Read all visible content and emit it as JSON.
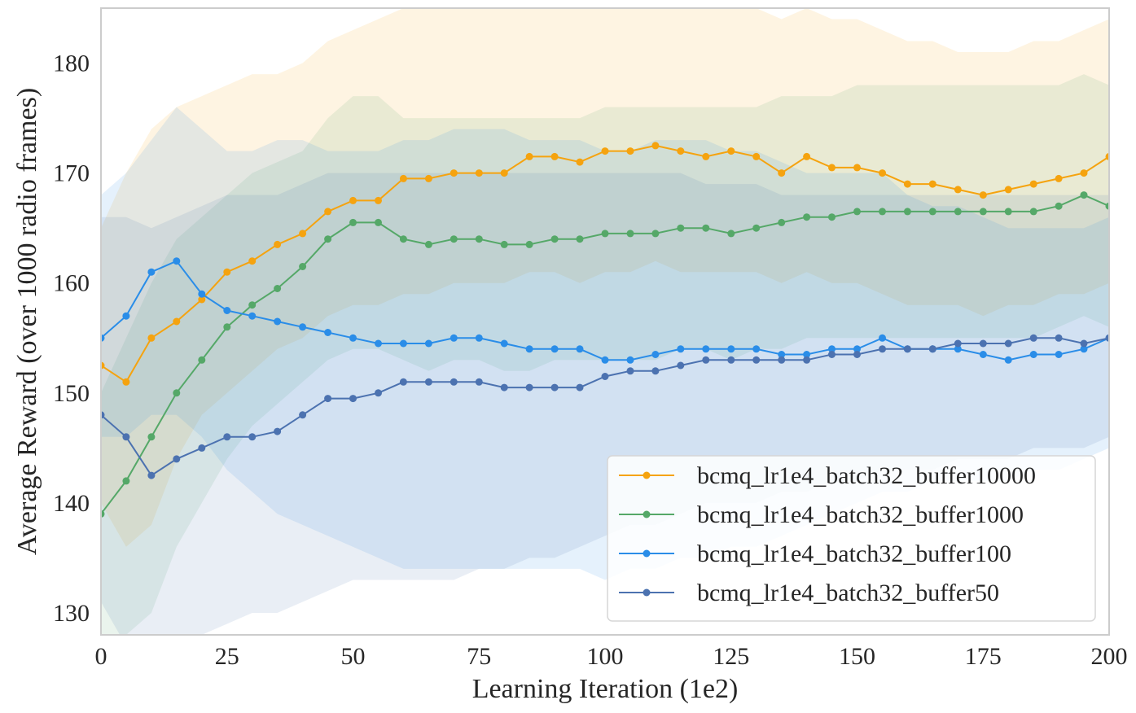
{
  "chart_data": {
    "type": "line",
    "title": "",
    "xlabel": "Learning Iteration (1e2)",
    "ylabel": "Average Reward (over 1000 radio frames)",
    "xlim": [
      0,
      200
    ],
    "ylim": [
      128,
      185
    ],
    "x_ticks": [
      "0",
      "25",
      "50",
      "75",
      "100",
      "125",
      "150",
      "175",
      "200"
    ],
    "y_ticks": [
      "130",
      "140",
      "150",
      "160",
      "170",
      "180"
    ],
    "grid": false,
    "legend_position": "lower-right",
    "marker": "circle",
    "shaded_band": true,
    "x": [
      0,
      5,
      10,
      15,
      20,
      25,
      30,
      35,
      40,
      45,
      50,
      55,
      60,
      65,
      70,
      75,
      80,
      85,
      90,
      95,
      100,
      105,
      110,
      115,
      120,
      125,
      130,
      135,
      140,
      145,
      150,
      155,
      160,
      165,
      170,
      175,
      180,
      185,
      190,
      195,
      200
    ],
    "series": [
      {
        "name": "bcmq_lr1e4_batch32_buffer10000",
        "color": "#f5a30f",
        "values": [
          152.5,
          151,
          155,
          156.5,
          158.5,
          161,
          162,
          163.5,
          164.5,
          166.5,
          167.5,
          167.5,
          169.5,
          169.5,
          170,
          170,
          170,
          171.5,
          171.5,
          171,
          172,
          172,
          172.5,
          172,
          171.5,
          172,
          171.5,
          170,
          171.5,
          170.5,
          170.5,
          170,
          169,
          169,
          168.5,
          168,
          168.5,
          169,
          169.5,
          170,
          171.5
        ],
        "band": [
          [
            140,
            165
          ],
          [
            136,
            170
          ],
          [
            138,
            174
          ],
          [
            144,
            176
          ],
          [
            148,
            177
          ],
          [
            150,
            178
          ],
          [
            152,
            179
          ],
          [
            154,
            179
          ],
          [
            155,
            180
          ],
          [
            157,
            182
          ],
          [
            158,
            183
          ],
          [
            158,
            184
          ],
          [
            159,
            185
          ],
          [
            159,
            185
          ],
          [
            160,
            185
          ],
          [
            160,
            185
          ],
          [
            160,
            185
          ],
          [
            161,
            185
          ],
          [
            161,
            185
          ],
          [
            160,
            185
          ],
          [
            161,
            185
          ],
          [
            161,
            185
          ],
          [
            162,
            185
          ],
          [
            161,
            185
          ],
          [
            161,
            185
          ],
          [
            161,
            185
          ],
          [
            161,
            185
          ],
          [
            160,
            184
          ],
          [
            161,
            185
          ],
          [
            160,
            184
          ],
          [
            160,
            184
          ],
          [
            159,
            183
          ],
          [
            158,
            182
          ],
          [
            158,
            182
          ],
          [
            158,
            181
          ],
          [
            157,
            181
          ],
          [
            158,
            181
          ],
          [
            158,
            182
          ],
          [
            159,
            182
          ],
          [
            159,
            183
          ],
          [
            160,
            184
          ]
        ]
      },
      {
        "name": "bcmq_lr1e4_batch32_buffer1000",
        "color": "#55a868",
        "values": [
          139,
          142,
          146,
          150,
          153,
          156,
          158,
          159.5,
          161.5,
          164,
          165.5,
          165.5,
          164,
          163.5,
          164,
          164,
          163.5,
          163.5,
          164,
          164,
          164.5,
          164.5,
          164.5,
          165,
          165,
          164.5,
          165,
          165.5,
          166,
          166,
          166.5,
          166.5,
          166.5,
          166.5,
          166.5,
          166.5,
          166.5,
          166.5,
          167,
          168,
          167
        ],
        "band": [
          [
            128,
            150
          ],
          [
            128,
            155
          ],
          [
            130,
            160
          ],
          [
            136,
            164
          ],
          [
            140,
            166
          ],
          [
            144,
            168
          ],
          [
            147,
            170
          ],
          [
            149,
            171
          ],
          [
            151,
            172
          ],
          [
            153,
            175
          ],
          [
            154,
            177
          ],
          [
            154,
            177
          ],
          [
            153,
            175
          ],
          [
            152,
            175
          ],
          [
            153,
            175
          ],
          [
            153,
            175
          ],
          [
            152,
            175
          ],
          [
            152,
            175
          ],
          [
            153,
            175
          ],
          [
            153,
            175
          ],
          [
            153,
            176
          ],
          [
            153,
            176
          ],
          [
            153,
            176
          ],
          [
            154,
            176
          ],
          [
            154,
            176
          ],
          [
            153,
            176
          ],
          [
            154,
            176
          ],
          [
            154,
            177
          ],
          [
            155,
            177
          ],
          [
            155,
            177
          ],
          [
            155,
            178
          ],
          [
            155,
            178
          ],
          [
            155,
            178
          ],
          [
            155,
            178
          ],
          [
            155,
            178
          ],
          [
            155,
            178
          ],
          [
            155,
            178
          ],
          [
            155,
            178
          ],
          [
            156,
            178
          ],
          [
            157,
            179
          ],
          [
            156,
            178
          ]
        ]
      },
      {
        "name": "bcmq_lr1e4_batch32_buffer100",
        "color": "#2a8de8",
        "values": [
          155,
          157,
          161,
          162,
          159,
          157.5,
          157,
          156.5,
          156,
          155.5,
          155,
          154.5,
          154.5,
          154.5,
          155,
          155,
          154.5,
          154,
          154,
          154,
          153,
          153,
          153.5,
          154,
          154,
          154,
          154,
          153.5,
          153.5,
          154,
          154,
          155,
          154,
          154,
          154,
          153.5,
          153,
          153.5,
          153.5,
          154,
          155
        ],
        "band": [
          [
            146,
            168
          ],
          [
            146,
            170
          ],
          [
            148,
            173
          ],
          [
            148,
            176
          ],
          [
            146,
            174
          ],
          [
            143,
            172
          ],
          [
            141,
            172
          ],
          [
            139,
            173
          ],
          [
            138,
            173
          ],
          [
            137,
            172
          ],
          [
            136,
            172
          ],
          [
            135,
            172
          ],
          [
            134,
            173
          ],
          [
            134,
            173
          ],
          [
            134,
            174
          ],
          [
            134,
            174
          ],
          [
            134,
            174
          ],
          [
            134,
            173
          ],
          [
            134,
            173
          ],
          [
            134,
            173
          ],
          [
            133,
            172
          ],
          [
            134,
            172
          ],
          [
            134,
            173
          ],
          [
            135,
            173
          ],
          [
            135,
            173
          ],
          [
            136,
            172
          ],
          [
            136,
            172
          ],
          [
            137,
            171
          ],
          [
            138,
            170
          ],
          [
            139,
            170
          ],
          [
            140,
            170
          ],
          [
            141,
            170
          ],
          [
            141,
            168
          ],
          [
            142,
            167
          ],
          [
            142,
            167
          ],
          [
            142,
            166
          ],
          [
            142,
            165
          ],
          [
            143,
            165
          ],
          [
            143,
            165
          ],
          [
            144,
            165
          ],
          [
            145,
            166
          ]
        ]
      },
      {
        "name": "bcmq_lr1e4_batch32_buffer50",
        "color": "#4c72b0",
        "values": [
          148,
          146,
          142.5,
          144,
          145,
          146,
          146,
          146.5,
          148,
          149.5,
          149.5,
          150,
          151,
          151,
          151,
          151,
          150.5,
          150.5,
          150.5,
          150.5,
          151.5,
          152,
          152,
          152.5,
          153,
          153,
          153,
          153,
          153,
          153.5,
          153.5,
          154,
          154,
          154,
          154.5,
          154.5,
          154.5,
          155,
          155,
          154.5,
          155
        ],
        "band": [
          [
            131,
            166
          ],
          [
            127,
            166
          ],
          [
            126,
            165
          ],
          [
            127,
            166
          ],
          [
            128,
            167
          ],
          [
            129,
            168
          ],
          [
            130,
            168
          ],
          [
            130,
            168
          ],
          [
            131,
            169
          ],
          [
            132,
            170
          ],
          [
            133,
            170
          ],
          [
            133,
            170
          ],
          [
            133,
            170
          ],
          [
            133,
            170
          ],
          [
            133,
            170
          ],
          [
            134,
            170
          ],
          [
            134,
            170
          ],
          [
            135,
            170
          ],
          [
            135,
            170
          ],
          [
            136,
            170
          ],
          [
            137,
            170
          ],
          [
            138,
            170
          ],
          [
            138,
            170
          ],
          [
            139,
            170
          ],
          [
            140,
            169
          ],
          [
            140,
            169
          ],
          [
            140,
            169
          ],
          [
            141,
            168
          ],
          [
            141,
            168
          ],
          [
            142,
            168
          ],
          [
            142,
            168
          ],
          [
            143,
            168
          ],
          [
            143,
            168
          ],
          [
            143,
            168
          ],
          [
            144,
            168
          ],
          [
            144,
            168
          ],
          [
            144,
            168
          ],
          [
            145,
            168
          ],
          [
            145,
            168
          ],
          [
            145,
            168
          ],
          [
            146,
            168
          ]
        ]
      }
    ]
  }
}
